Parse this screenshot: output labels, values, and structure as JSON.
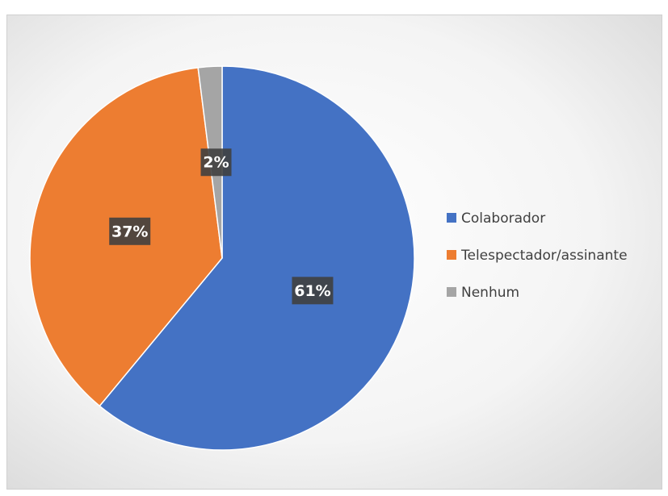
{
  "chart_data": {
    "type": "pie",
    "categories": [
      "Colaborador",
      "Telespectador/assinante",
      "Nenhum"
    ],
    "values": [
      61,
      37,
      2
    ],
    "value_labels": [
      "61%",
      "37%",
      "2%"
    ],
    "colors": [
      "#4472c4",
      "#ed7d31",
      "#a5a5a5"
    ],
    "legend": "right"
  }
}
